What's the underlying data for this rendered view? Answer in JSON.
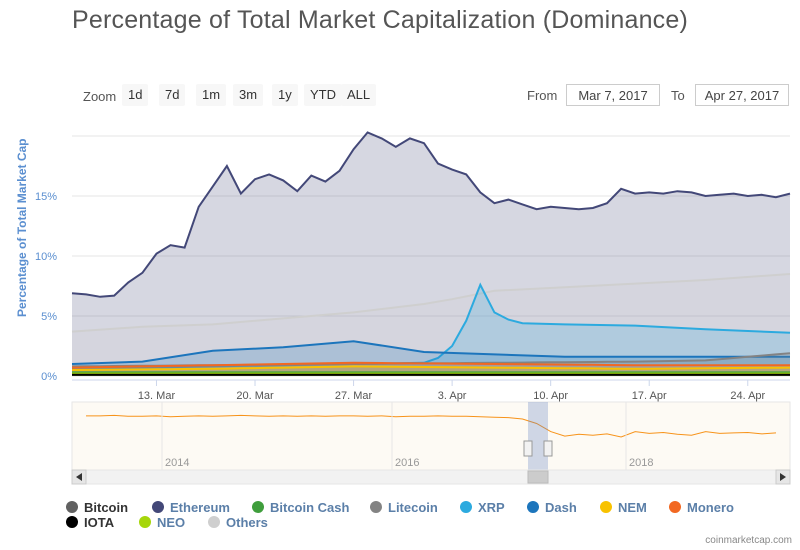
{
  "header": {
    "title": "Percentage of Total Market Capitalization (Dominance)"
  },
  "zoom": {
    "label": "Zoom",
    "buttons": [
      "1d",
      "7d",
      "1m",
      "3m",
      "1y",
      "YTD",
      "ALL"
    ]
  },
  "range": {
    "from_label": "From",
    "from_value": "Mar 7, 2017",
    "to_label": "To",
    "to_value": "Apr 27, 2017"
  },
  "chart_data": {
    "type": "area",
    "title": "Percentage of Total Market Capitalization (Dominance)",
    "ylabel": "Percentage of Total Market Cap",
    "y_ticks": [
      "0%",
      "5%",
      "10%",
      "15%"
    ],
    "x_ticks": [
      "13. Mar",
      "20. Mar",
      "27. Mar",
      "3. Apr",
      "10. Apr",
      "17. Apr",
      "24. Apr"
    ],
    "x_tick_days": [
      6,
      13,
      20,
      27,
      34,
      41,
      48
    ],
    "x_range_days": [
      0,
      51
    ],
    "ylim": [
      0,
      20.5
    ],
    "grid": true,
    "series": [
      {
        "name": "Ethereum",
        "color": "#434878",
        "x": [
          0,
          1,
          2,
          3,
          4,
          5,
          6,
          7,
          8,
          9,
          10,
          11,
          12,
          13,
          14,
          15,
          16,
          17,
          18,
          19,
          20,
          21,
          22,
          23,
          24,
          25,
          26,
          27,
          28,
          29,
          30,
          31,
          32,
          33,
          34,
          35,
          36,
          37,
          38,
          39,
          40,
          41,
          42,
          43,
          44,
          45,
          46,
          47,
          48,
          49,
          50,
          51
        ],
        "values": [
          6.9,
          6.8,
          6.6,
          6.7,
          7.8,
          8.6,
          10.2,
          10.9,
          10.7,
          14.1,
          15.8,
          17.5,
          15.2,
          16.4,
          16.8,
          16.3,
          15.4,
          16.7,
          16.2,
          17.1,
          18.9,
          20.3,
          19.8,
          19.1,
          19.8,
          19.4,
          17.7,
          17.2,
          16.8,
          15.3,
          14.4,
          14.7,
          14.3,
          13.9,
          14.1,
          14.0,
          13.9,
          14.0,
          14.4,
          15.6,
          15.2,
          15.3,
          15.2,
          15.4,
          15.3,
          15.0,
          15.1,
          15.2,
          15.0,
          15.1,
          14.9,
          15.2
        ]
      },
      {
        "name": "Others",
        "color": "#cfcfcf",
        "x": [
          0,
          5,
          10,
          15,
          20,
          25,
          27,
          30,
          35,
          40,
          45,
          51
        ],
        "values": [
          3.7,
          4.1,
          4.3,
          4.8,
          5.3,
          6.0,
          6.4,
          7.1,
          7.4,
          7.7,
          8.0,
          8.5
        ]
      },
      {
        "name": "XRP",
        "color": "#2caadf",
        "x": [
          0,
          5,
          10,
          15,
          20,
          25,
          26,
          27,
          28,
          29,
          30,
          31,
          32,
          35,
          40,
          45,
          51
        ],
        "values": [
          0.6,
          0.7,
          0.8,
          0.9,
          1.0,
          1.1,
          1.5,
          2.5,
          4.6,
          7.6,
          5.3,
          4.7,
          4.4,
          4.3,
          4.2,
          3.9,
          3.6
        ]
      },
      {
        "name": "Dash",
        "color": "#1c75bc",
        "x": [
          0,
          5,
          10,
          15,
          20,
          25,
          30,
          35,
          40,
          45,
          51
        ],
        "values": [
          1.0,
          1.2,
          2.1,
          2.4,
          2.9,
          2.0,
          1.8,
          1.6,
          1.6,
          1.6,
          1.6
        ]
      },
      {
        "name": "Litecoin",
        "color": "#838383",
        "x": [
          0,
          10,
          20,
          30,
          40,
          45,
          51
        ],
        "values": [
          0.8,
          0.9,
          1.0,
          1.1,
          1.2,
          1.3,
          1.9
        ]
      },
      {
        "name": "Monero",
        "color": "#f26822",
        "x": [
          0,
          10,
          20,
          30,
          40,
          51
        ],
        "values": [
          0.7,
          0.9,
          1.1,
          1.0,
          0.9,
          0.9
        ]
      },
      {
        "name": "NEM",
        "color": "#f8c200",
        "x": [
          0,
          10,
          20,
          30,
          40,
          51
        ],
        "values": [
          0.5,
          0.6,
          0.8,
          0.7,
          0.6,
          0.7
        ]
      },
      {
        "name": "Bitcoin Cash",
        "color": "#3f9e3c",
        "x": [
          0,
          51
        ],
        "values": [
          0.3,
          0.3
        ]
      },
      {
        "name": "NEO",
        "color": "#a6d60b",
        "x": [
          0,
          51
        ],
        "values": [
          0.2,
          0.2
        ]
      },
      {
        "name": "IOTA",
        "color": "#000000",
        "x": [
          0,
          51
        ],
        "values": [
          0.1,
          0.1
        ]
      },
      {
        "name": "Bitcoin",
        "color": "#616161",
        "x": [
          0,
          51
        ],
        "values": [
          0.0,
          0.0
        ]
      }
    ]
  },
  "navigator": {
    "year_labels": [
      "2014",
      "2016",
      "2018"
    ],
    "line_color": "#f7931a",
    "values": [
      87,
      87,
      88,
      86,
      86,
      87,
      85,
      86,
      87,
      86,
      87,
      88,
      87,
      86,
      87,
      86,
      87,
      86,
      87,
      87,
      86,
      87,
      85,
      86,
      86,
      87,
      86,
      86,
      85,
      84,
      83,
      80,
      70,
      52,
      42,
      46,
      44,
      47,
      40,
      52,
      48,
      50,
      46,
      44,
      52,
      48,
      49,
      50,
      47,
      49
    ]
  },
  "legend": {
    "items": [
      {
        "name": "Bitcoin",
        "color": "#616161"
      },
      {
        "name": "Ethereum",
        "color": "#434878"
      },
      {
        "name": "Bitcoin Cash",
        "color": "#3f9e3c"
      },
      {
        "name": "Litecoin",
        "color": "#838383"
      },
      {
        "name": "XRP",
        "color": "#2caadf"
      },
      {
        "name": "Dash",
        "color": "#1c75bc"
      },
      {
        "name": "NEM",
        "color": "#f8c200"
      },
      {
        "name": "Monero",
        "color": "#f26822"
      },
      {
        "name": "IOTA",
        "color": "#000000"
      },
      {
        "name": "NEO",
        "color": "#a6d60b"
      },
      {
        "name": "Others",
        "color": "#cfcfcf"
      }
    ]
  },
  "credits": {
    "text": "coinmarketcap.com"
  }
}
